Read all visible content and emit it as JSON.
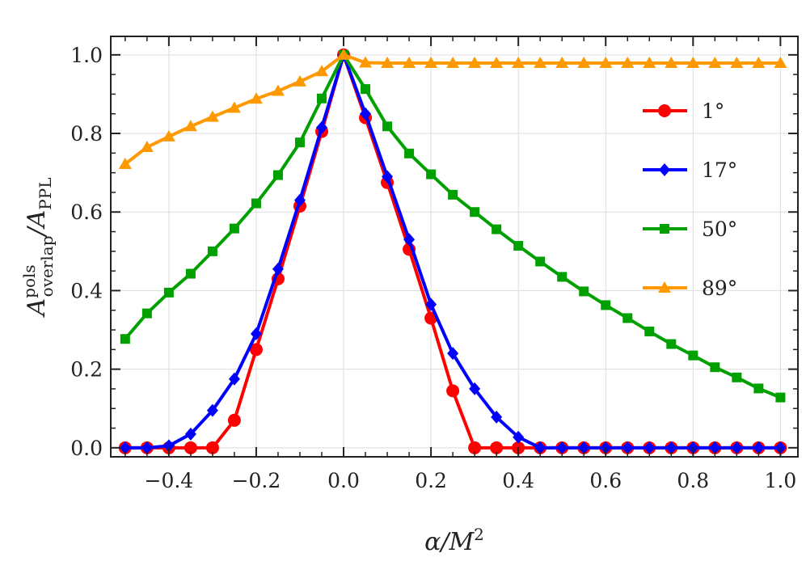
{
  "chart_data": {
    "type": "line",
    "title": "",
    "xlabel": {
      "base": "α/M",
      "sup": "2"
    },
    "ylabel": {
      "base": "A",
      "sup": "pols",
      "sub": "overlap",
      "mid": "/A",
      "sub2": "PPL"
    },
    "xlim": [
      -0.533,
      1.04
    ],
    "ylim": [
      -0.023,
      1.047
    ],
    "xticks": [
      "−0.4",
      "−0.2",
      "0.0",
      "0.2",
      "0.4",
      "0.6",
      "0.8",
      "1.0"
    ],
    "xtick_values": [
      -0.4,
      -0.2,
      0.0,
      0.2,
      0.4,
      0.6,
      0.8,
      1.0
    ],
    "yticks": [
      "0.0",
      "0.2",
      "0.4",
      "0.6",
      "0.8",
      "1.0"
    ],
    "ytick_values": [
      0.0,
      0.2,
      0.4,
      0.6,
      0.8,
      1.0
    ],
    "grid": true,
    "legend_placement": "right",
    "x": [
      -0.5,
      -0.45,
      -0.4,
      -0.35,
      -0.3,
      -0.25,
      -0.2,
      -0.15,
      -0.1,
      -0.05,
      0.0,
      0.05,
      0.1,
      0.15,
      0.2,
      0.25,
      0.3,
      0.35,
      0.4,
      0.45,
      0.5,
      0.55,
      0.6,
      0.65,
      0.7,
      0.75,
      0.8,
      0.85,
      0.9,
      0.95,
      1.0
    ],
    "series": [
      {
        "name": "1°",
        "color": "#ff0000",
        "marker": "circle",
        "values": [
          0,
          0,
          0,
          0,
          0,
          0.07,
          0.25,
          0.43,
          0.615,
          0.805,
          1.0,
          0.84,
          0.675,
          0.505,
          0.33,
          0.145,
          0,
          0,
          0,
          0,
          0,
          0,
          0,
          0,
          0,
          0,
          0,
          0,
          0,
          0,
          0
        ]
      },
      {
        "name": "17°",
        "color": "#0000ff",
        "marker": "diamond",
        "values": [
          0,
          0,
          0.005,
          0.035,
          0.095,
          0.175,
          0.29,
          0.455,
          0.63,
          0.815,
          1.0,
          0.85,
          0.69,
          0.53,
          0.365,
          0.24,
          0.15,
          0.078,
          0.027,
          0,
          0,
          0,
          0,
          0,
          0,
          0,
          0,
          0,
          0,
          0,
          0
        ]
      },
      {
        "name": "50°",
        "color": "#00a000",
        "marker": "square",
        "values": [
          0.277,
          0.342,
          0.395,
          0.443,
          0.5,
          0.558,
          0.622,
          0.694,
          0.777,
          0.889,
          1.0,
          0.913,
          0.818,
          0.749,
          0.696,
          0.644,
          0.6,
          0.556,
          0.514,
          0.474,
          0.435,
          0.398,
          0.363,
          0.33,
          0.296,
          0.264,
          0.235,
          0.205,
          0.179,
          0.151,
          0.128
        ]
      },
      {
        "name": "89°",
        "color": "#ff9900",
        "marker": "triangle",
        "values": [
          0.722,
          0.765,
          0.792,
          0.818,
          0.842,
          0.865,
          0.888,
          0.908,
          0.932,
          0.958,
          1.0,
          0.98,
          0.979,
          0.979,
          0.979,
          0.979,
          0.979,
          0.979,
          0.979,
          0.979,
          0.979,
          0.979,
          0.979,
          0.979,
          0.979,
          0.979,
          0.979,
          0.979,
          0.979,
          0.979,
          0.979
        ]
      }
    ]
  }
}
